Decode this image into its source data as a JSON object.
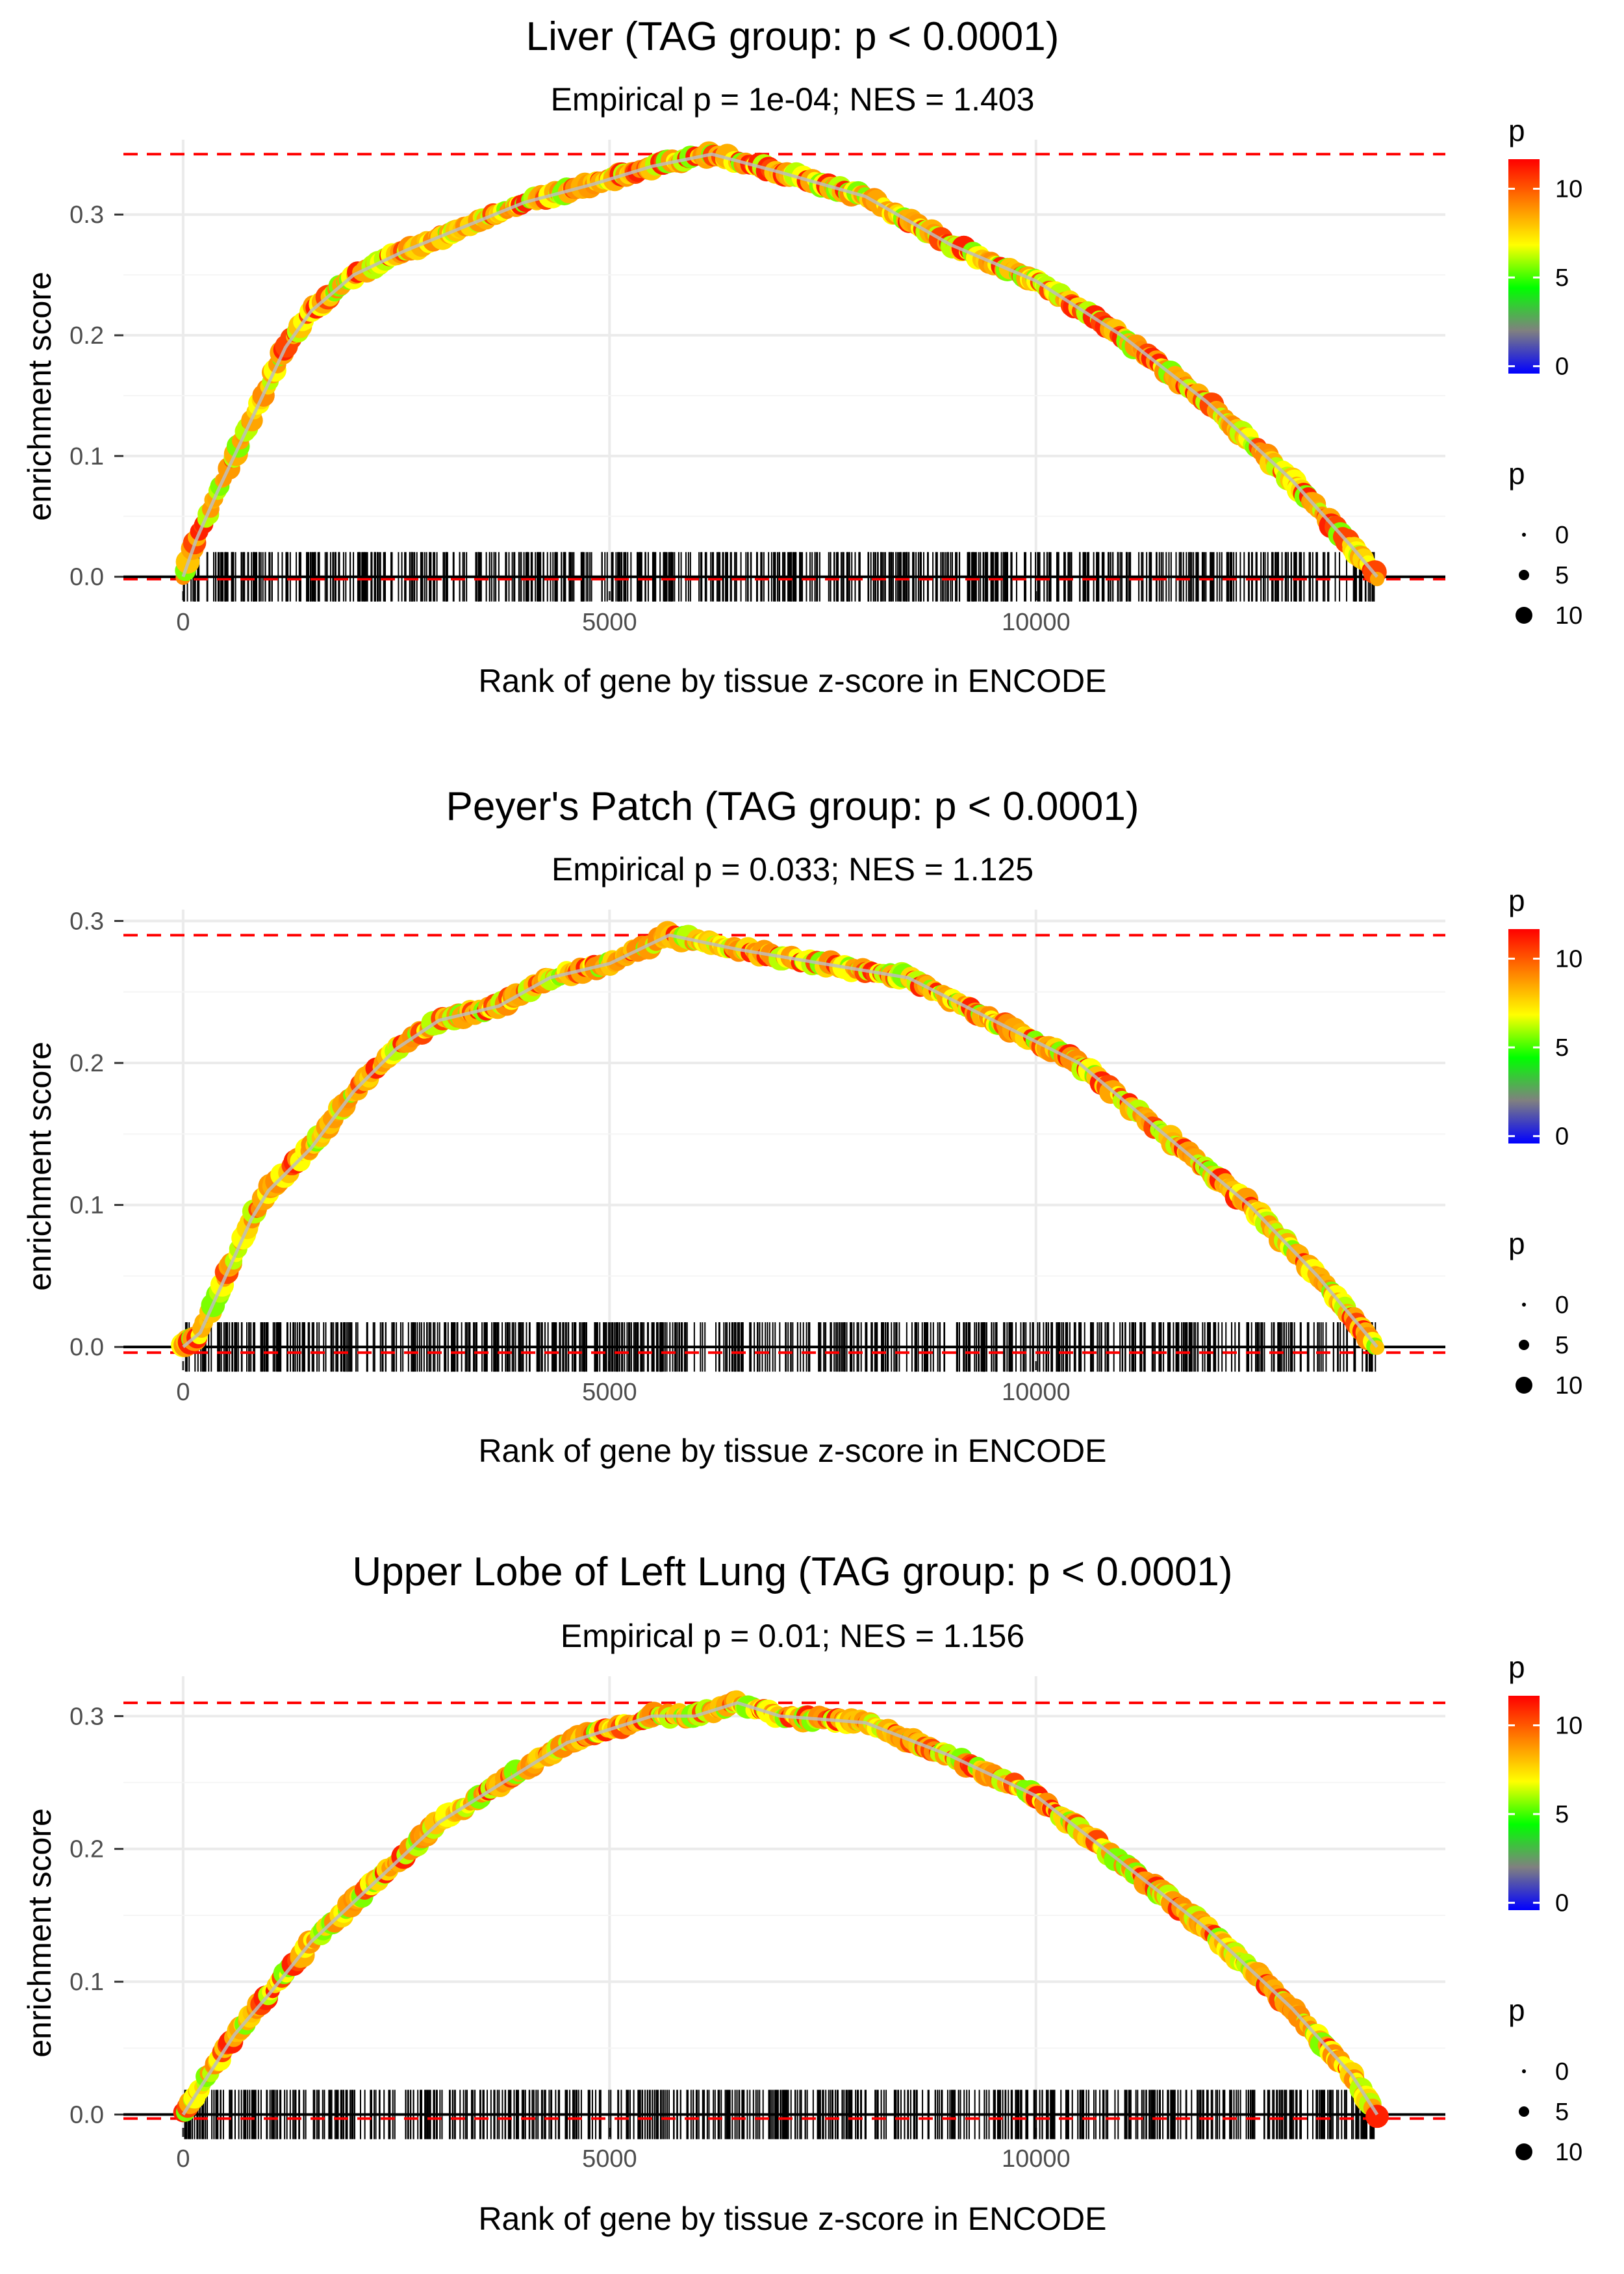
{
  "chart_data": [
    {
      "type": "line",
      "title": "Liver (TAG group: p < 0.0001)",
      "subtitle": "Empirical p = 1e-04; NES = 1.403",
      "xlabel": "Rank of gene by tissue z-score in ENCODE",
      "ylabel": "enrichment score",
      "xlim": [
        -700,
        14800
      ],
      "ylim": [
        -0.012,
        0.362
      ],
      "x_ticks": [
        0,
        5000,
        10000
      ],
      "x_tick_labels": [
        "0",
        "5000",
        "10000"
      ],
      "y_ticks": [
        0.0,
        0.1,
        0.2,
        0.3
      ],
      "y_tick_labels": [
        "0.0",
        "0.1",
        "0.2",
        "0.3"
      ],
      "max_es": 0.35,
      "min_es": -0.002,
      "n_genes": 14000,
      "curve": [
        [
          0,
          0.0
        ],
        [
          150,
          0.03
        ],
        [
          400,
          0.07
        ],
        [
          800,
          0.13
        ],
        [
          1200,
          0.19
        ],
        [
          1500,
          0.22
        ],
        [
          2000,
          0.25
        ],
        [
          2600,
          0.27
        ],
        [
          3300,
          0.29
        ],
        [
          4000,
          0.31
        ],
        [
          4800,
          0.325
        ],
        [
          5500,
          0.34
        ],
        [
          6200,
          0.35
        ],
        [
          7000,
          0.335
        ],
        [
          8000,
          0.315
        ],
        [
          9000,
          0.275
        ],
        [
          10000,
          0.245
        ],
        [
          11000,
          0.2
        ],
        [
          12000,
          0.145
        ],
        [
          13000,
          0.08
        ],
        [
          13700,
          0.025
        ],
        [
          14000,
          0.0
        ]
      ],
      "legend": {
        "color_title": "p",
        "color_ticks": [
          "10",
          "5",
          "0"
        ],
        "size_title": "p",
        "size_labels": [
          "0",
          "5",
          "10"
        ]
      }
    },
    {
      "type": "line",
      "title": "Peyer's Patch (TAG group: p < 0.0001)",
      "subtitle": "Empirical p = 0.033; NES = 1.125",
      "xlabel": "Rank of gene by tissue z-score in ENCODE",
      "ylabel": "enrichment score",
      "xlim": [
        -700,
        14800
      ],
      "ylim": [
        -0.01,
        0.308
      ],
      "x_ticks": [
        0,
        5000,
        10000
      ],
      "x_tick_labels": [
        "0",
        "5000",
        "10000"
      ],
      "y_ticks": [
        0.0,
        0.1,
        0.2,
        0.3
      ],
      "y_tick_labels": [
        "0.0",
        "0.1",
        "0.2",
        "0.3"
      ],
      "max_es": 0.29,
      "min_es": -0.004,
      "n_genes": 14000,
      "curve": [
        [
          0,
          0.0
        ],
        [
          200,
          0.01
        ],
        [
          500,
          0.05
        ],
        [
          800,
          0.09
        ],
        [
          1000,
          0.11
        ],
        [
          1500,
          0.14
        ],
        [
          2000,
          0.18
        ],
        [
          2500,
          0.21
        ],
        [
          3000,
          0.23
        ],
        [
          3700,
          0.24
        ],
        [
          4300,
          0.26
        ],
        [
          5000,
          0.27
        ],
        [
          5700,
          0.29
        ],
        [
          6500,
          0.28
        ],
        [
          7500,
          0.27
        ],
        [
          8500,
          0.26
        ],
        [
          9500,
          0.23
        ],
        [
          10500,
          0.2
        ],
        [
          11500,
          0.15
        ],
        [
          12500,
          0.1
        ],
        [
          13300,
          0.05
        ],
        [
          14000,
          0.0
        ]
      ],
      "legend": {
        "color_title": "p",
        "color_ticks": [
          "10",
          "5",
          "0"
        ],
        "size_title": "p",
        "size_labels": [
          "0",
          "5",
          "10"
        ]
      }
    },
    {
      "type": "line",
      "title": "Upper Lobe of Left Lung (TAG group: p < 0.0001)",
      "subtitle": "Empirical p = 0.01; NES = 1.156",
      "xlabel": "Rank of gene by tissue z-score in ENCODE",
      "ylabel": "enrichment score",
      "xlim": [
        -700,
        14800
      ],
      "ylim": [
        -0.01,
        0.33
      ],
      "x_ticks": [
        0,
        5000,
        10000
      ],
      "x_tick_labels": [
        "0",
        "5000",
        "10000"
      ],
      "y_ticks": [
        0.0,
        0.1,
        0.2,
        0.3
      ],
      "y_tick_labels": [
        "0.0",
        "0.1",
        "0.2",
        "0.3"
      ],
      "max_es": 0.31,
      "min_es": -0.003,
      "n_genes": 14000,
      "curve": [
        [
          0,
          0.0
        ],
        [
          300,
          0.03
        ],
        [
          600,
          0.06
        ],
        [
          1000,
          0.09
        ],
        [
          1500,
          0.13
        ],
        [
          2000,
          0.16
        ],
        [
          2500,
          0.19
        ],
        [
          3000,
          0.22
        ],
        [
          3500,
          0.24
        ],
        [
          4000,
          0.26
        ],
        [
          4500,
          0.28
        ],
        [
          5000,
          0.29
        ],
        [
          5500,
          0.3
        ],
        [
          6000,
          0.3
        ],
        [
          6500,
          0.31
        ],
        [
          7000,
          0.3
        ],
        [
          8000,
          0.295
        ],
        [
          9000,
          0.27
        ],
        [
          10000,
          0.24
        ],
        [
          11000,
          0.19
        ],
        [
          12000,
          0.14
        ],
        [
          13000,
          0.08
        ],
        [
          13700,
          0.03
        ],
        [
          14000,
          0.0
        ]
      ],
      "legend": {
        "color_title": "p",
        "color_ticks": [
          "10",
          "5",
          "0"
        ],
        "size_title": "p",
        "size_labels": [
          "0",
          "5",
          "10"
        ]
      }
    }
  ],
  "colors": {
    "panel_bg": "#ffffff",
    "grid": "#ebebeb",
    "hline": "#ff0000",
    "zero_line": "#000000",
    "curve_core": "#bdbdbd",
    "gradient": [
      "#ff0000",
      "#ff8000",
      "#ffff00",
      "#00ff00",
      "#808080",
      "#0000ff"
    ]
  }
}
